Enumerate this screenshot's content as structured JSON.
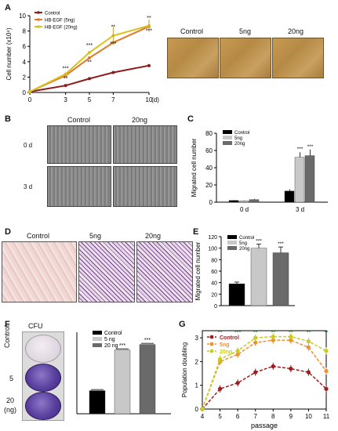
{
  "panels": {
    "A": "A",
    "B": "B",
    "C": "C",
    "D": "D",
    "E": "E",
    "F": "F",
    "G": "G"
  },
  "panelA": {
    "chart_data": {
      "type": "line",
      "ylabel": "Cell number (x10⁴)",
      "xlabel_suffix": "(d)",
      "x": [
        0,
        3,
        5,
        7,
        10
      ],
      "ylim": [
        0,
        10
      ],
      "yticks": [
        0,
        2,
        4,
        6,
        8,
        10
      ],
      "xticks": [
        "0",
        "3",
        "5",
        "7",
        "10"
      ],
      "series": [
        {
          "name": "Control",
          "color": "#8b1a1a",
          "values": [
            0.1,
            0.9,
            1.8,
            2.6,
            3.5
          ]
        },
        {
          "name": "HB-EGF (5ng)",
          "color": "#e07a2a",
          "values": [
            0.1,
            2.2,
            4.5,
            6.5,
            8.6
          ]
        },
        {
          "name": "HB-EGF (20ng)",
          "color": "#d9c21c",
          "values": [
            0.1,
            2.4,
            5.2,
            7.4,
            8.7
          ]
        }
      ],
      "annotations": [
        {
          "x": 3,
          "y": 2.9,
          "text": "***"
        },
        {
          "x": 3,
          "y": 1.6,
          "text": "**"
        },
        {
          "x": 5,
          "y": 5.9,
          "text": "***"
        },
        {
          "x": 5,
          "y": 3.7,
          "text": "**"
        },
        {
          "x": 7,
          "y": 8.3,
          "text": "**"
        },
        {
          "x": 7,
          "y": 6.1,
          "text": "***"
        },
        {
          "x": 10,
          "y": 9.5,
          "text": "**"
        },
        {
          "x": 10,
          "y": 7.8,
          "text": "***"
        }
      ]
    },
    "images": [
      "Control",
      "5ng",
      "20ng"
    ]
  },
  "panelB": {
    "cols": [
      "Control",
      "20ng"
    ],
    "rows": [
      "0 d",
      "3 d"
    ]
  },
  "panelC": {
    "chart_data": {
      "type": "bar",
      "ylabel": "Migrated cell number",
      "categories": [
        "0 d",
        "3 d"
      ],
      "ylim": [
        0,
        80
      ],
      "yticks": [
        0,
        20,
        40,
        60,
        80
      ],
      "series": [
        {
          "name": "Control",
          "color": "#000000",
          "values": [
            2,
            13
          ],
          "err": [
            0.5,
            2
          ]
        },
        {
          "name": "5ng",
          "color": "#c8c8c8",
          "values": [
            1.5,
            52
          ],
          "err": [
            0.5,
            6
          ]
        },
        {
          "name": "20ng",
          "color": "#6a6a6a",
          "values": [
            3,
            54
          ],
          "err": [
            0.8,
            7
          ]
        }
      ],
      "annotations": [
        "***",
        "***"
      ]
    }
  },
  "panelD": {
    "cols": [
      "Control",
      "5ng",
      "20ng"
    ]
  },
  "panelE": {
    "chart_data": {
      "type": "bar",
      "ylabel": "Migrated cell number",
      "categories": [
        "Control",
        "5ng",
        "20ng"
      ],
      "ylim": [
        0,
        120
      ],
      "yticks": [
        0,
        20,
        40,
        60,
        80,
        100,
        120
      ],
      "series": [
        {
          "name": "Control",
          "color": "#000000",
          "value": 38,
          "err": 3
        },
        {
          "name": "5ng",
          "color": "#c8c8c8",
          "value": 100,
          "err": 7
        },
        {
          "name": "20ng",
          "color": "#6a6a6a",
          "value": 92,
          "err": 10
        }
      ],
      "annotations": [
        "***",
        "***"
      ]
    }
  },
  "panelF": {
    "plate_title": "CFU",
    "row_labels": [
      "Control",
      "5",
      "20",
      "(ng)"
    ],
    "chart_data": {
      "type": "bar",
      "categories": [
        "Control",
        "5 ng",
        "20 ng"
      ],
      "ylim": [
        0,
        60
      ],
      "series": [
        {
          "name": "Control",
          "color": "#000000",
          "value": 17,
          "err": 0.8
        },
        {
          "name": "5 ng",
          "color": "#c8c8c8",
          "value": 47,
          "err": 0.8
        },
        {
          "name": "20 ng",
          "color": "#6a6a6a",
          "value": 51,
          "err": 0.8
        }
      ],
      "annotations": [
        "***",
        "***"
      ]
    }
  },
  "panelG": {
    "chart_data": {
      "type": "line",
      "ylabel": "Population doubling",
      "xlabel": "passage",
      "x": [
        4,
        5,
        6,
        7,
        8,
        9,
        10,
        11
      ],
      "ylim": [
        0,
        3.3
      ],
      "yticks": [
        0,
        1,
        2,
        3
      ],
      "series": [
        {
          "name": "Control",
          "color": "#9b1f1f",
          "values": [
            0,
            0.85,
            1.1,
            1.55,
            1.8,
            1.7,
            1.55,
            0.85
          ]
        },
        {
          "name": "5ng",
          "color": "#f0902a",
          "values": [
            0,
            2.0,
            2.3,
            2.8,
            2.9,
            2.9,
            2.6,
            1.6
          ]
        },
        {
          "name": "20ng",
          "color": "#c8cc22",
          "values": [
            0,
            2.1,
            2.45,
            3.0,
            3.05,
            3.05,
            2.85,
            2.45
          ]
        }
      ],
      "annotations": [
        {
          "x": 5,
          "text": "**"
        },
        {
          "x": 6,
          "text": "***"
        },
        {
          "x": 7,
          "text": "**"
        },
        {
          "x": 8,
          "text": "**"
        },
        {
          "x": 9,
          "text": "**"
        },
        {
          "x": 10,
          "text": "**"
        },
        {
          "x": 11,
          "text": "**"
        }
      ]
    }
  }
}
